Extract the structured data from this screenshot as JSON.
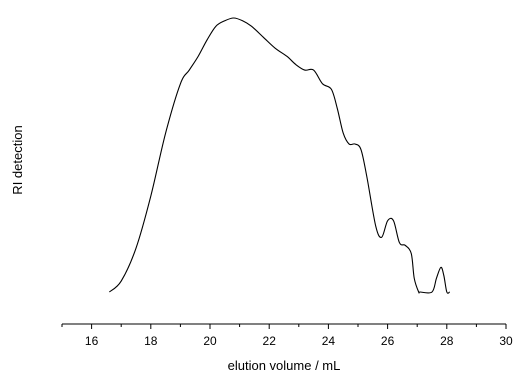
{
  "chart_data": {
    "type": "line",
    "title": "",
    "xlabel": "elution volume / mL",
    "ylabel": "RI detection",
    "xlim": [
      15,
      30
    ],
    "x_ticks": [
      "16",
      "18",
      "20",
      "22",
      "24",
      "26",
      "28",
      "30"
    ],
    "y_axis_visible": false,
    "grid": false,
    "legend": "none",
    "line_color": "#000000",
    "series": [
      {
        "x": [
          16.6,
          17.0,
          17.5,
          18.0,
          18.5,
          19.0,
          19.3,
          19.6,
          19.9,
          20.2,
          20.5,
          20.8,
          21.1,
          21.4,
          21.8,
          22.2,
          22.6,
          22.9,
          23.2,
          23.5,
          23.8,
          24.1,
          24.3,
          24.5,
          24.7,
          24.9,
          25.1,
          25.3,
          25.6,
          25.8,
          26.0,
          26.2,
          26.4,
          26.6,
          26.8,
          26.9,
          27.05,
          27.1,
          27.5,
          27.65,
          27.8,
          27.9,
          28.0,
          28.1
        ],
        "y": [
          0.0,
          0.04,
          0.16,
          0.35,
          0.58,
          0.76,
          0.81,
          0.86,
          0.92,
          0.97,
          0.99,
          1.0,
          0.99,
          0.97,
          0.93,
          0.89,
          0.86,
          0.83,
          0.81,
          0.81,
          0.76,
          0.74,
          0.67,
          0.58,
          0.54,
          0.54,
          0.52,
          0.42,
          0.24,
          0.2,
          0.26,
          0.26,
          0.18,
          0.17,
          0.14,
          0.05,
          0.0,
          0.0,
          0.0,
          0.05,
          0.09,
          0.06,
          0.0,
          0.0
        ]
      }
    ]
  }
}
